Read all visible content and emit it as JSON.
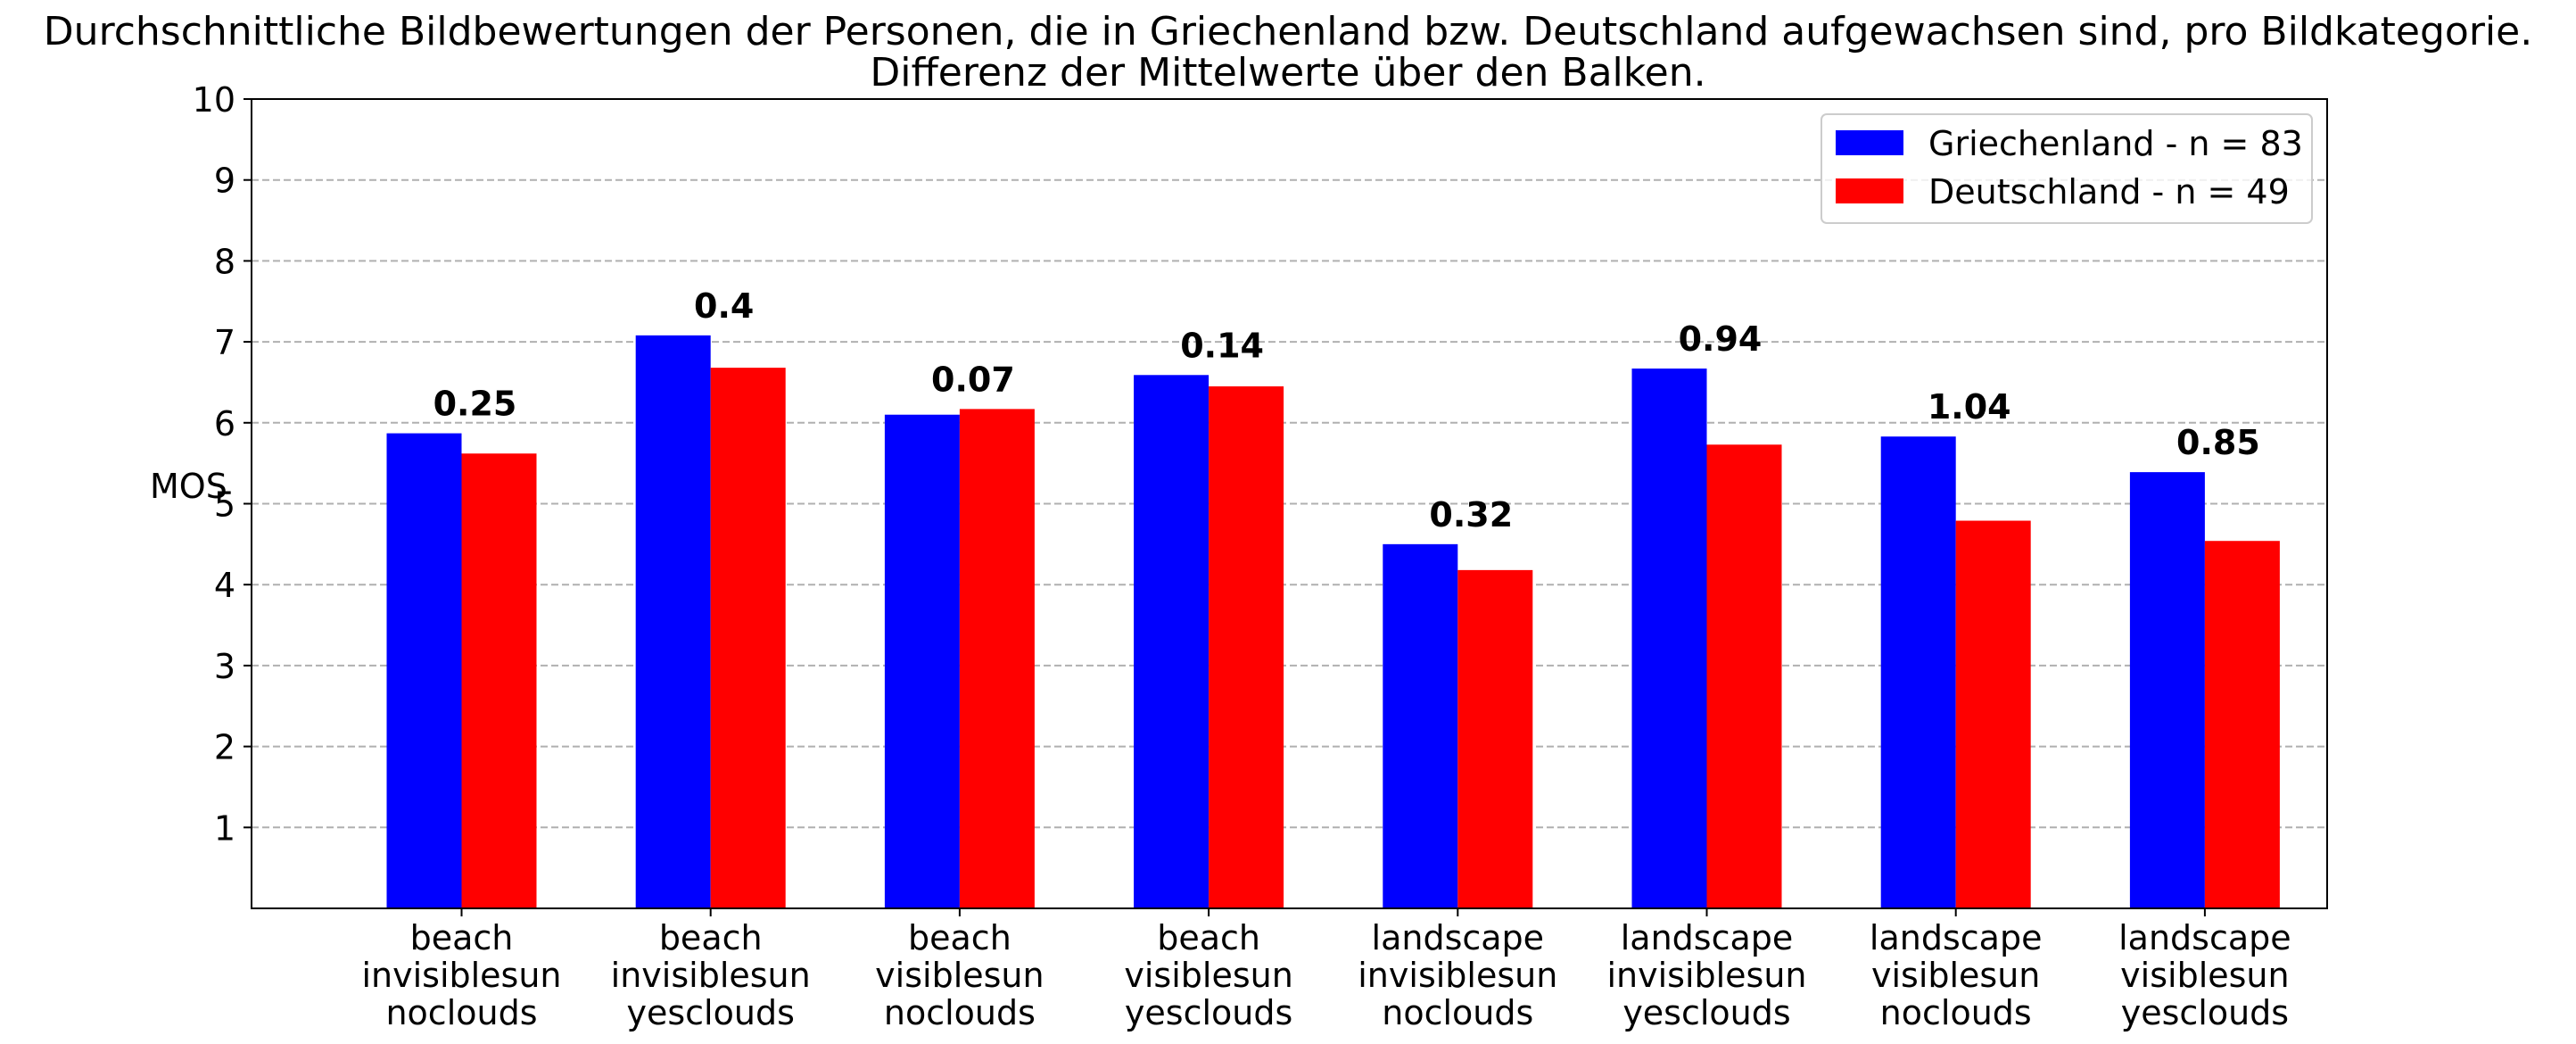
{
  "chart_data": {
    "type": "bar",
    "title_line1": "Durchschnittliche Bildbewertungen der Personen, die in Griechenland bzw. Deutschland aufgewachsen sind, pro Bildkategorie.",
    "title_line2": "Differenz der Mittelwerte über den Balken.",
    "xlabel": "",
    "ylabel": "MOS",
    "ylim": [
      0,
      10
    ],
    "yticks": [
      1,
      2,
      3,
      4,
      5,
      6,
      7,
      8,
      9,
      10
    ],
    "grid": "y-dashed",
    "legend_position": "top-right",
    "categories": [
      [
        "beach",
        "invisiblesun",
        "noclouds"
      ],
      [
        "beach",
        "invisiblesun",
        "yesclouds"
      ],
      [
        "beach",
        "visiblesun",
        "noclouds"
      ],
      [
        "beach",
        "visiblesun",
        "yesclouds"
      ],
      [
        "landscape",
        "invisiblesun",
        "noclouds"
      ],
      [
        "landscape",
        "invisiblesun",
        "yesclouds"
      ],
      [
        "landscape",
        "visiblesun",
        "noclouds"
      ],
      [
        "landscape",
        "visiblesun",
        "yesclouds"
      ]
    ],
    "series": [
      {
        "name": "Griechenland - n = 83",
        "color": "#0000ff",
        "values": [
          5.87,
          7.08,
          6.1,
          6.59,
          4.5,
          6.67,
          5.83,
          5.39
        ]
      },
      {
        "name": "Deutschland - n = 49",
        "color": "#ff0000",
        "values": [
          5.62,
          6.68,
          6.17,
          6.45,
          4.18,
          5.73,
          4.79,
          4.54
        ]
      }
    ],
    "diff_labels": [
      "0.25",
      "0.4",
      "0.07",
      "0.14",
      "0.32",
      "0.94",
      "1.04",
      "0.85"
    ]
  }
}
